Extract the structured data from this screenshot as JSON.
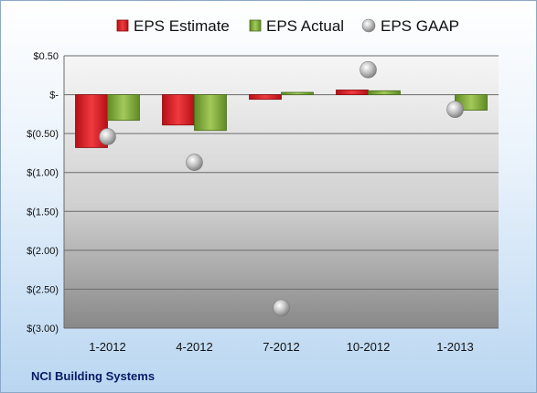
{
  "chart_data": {
    "type": "bar",
    "categories": [
      "1-2012",
      "4-2012",
      "7-2012",
      "10-2012",
      "1-2013"
    ],
    "series": [
      {
        "name": "EPS Estimate",
        "type": "bar",
        "color": "#e8232a",
        "values": [
          -0.68,
          -0.39,
          -0.06,
          0.06,
          null
        ]
      },
      {
        "name": "EPS Actual",
        "type": "bar",
        "color": "#8db33f",
        "values": [
          -0.33,
          -0.46,
          0.03,
          0.05,
          -0.2
        ]
      },
      {
        "name": "EPS GAAP",
        "type": "scatter",
        "color": "#b8b8b8",
        "values": [
          -0.54,
          -0.87,
          -2.74,
          0.32,
          -0.19
        ]
      }
    ],
    "yticks": [
      "$0.50",
      "$-",
      "$(0.50)",
      "$(1.00)",
      "$(1.50)",
      "$(2.00)",
      "$(2.50)",
      "$(3.00)"
    ],
    "ytick_values": [
      0.5,
      0,
      -0.5,
      -1.0,
      -1.5,
      -2.0,
      -2.5,
      -3.0
    ],
    "ylim": [
      -3.0,
      0.5
    ],
    "grid": true,
    "legend_position": "top"
  },
  "footer": {
    "company": "NCI Building Systems"
  }
}
